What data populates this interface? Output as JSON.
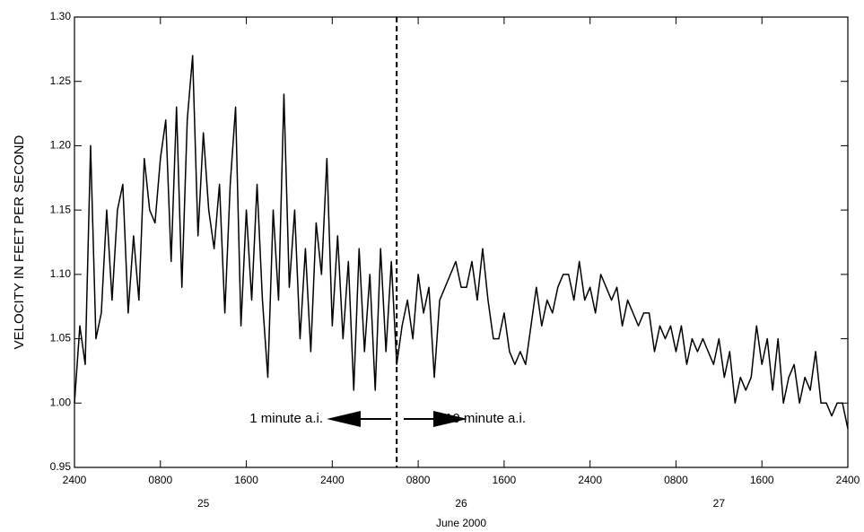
{
  "chart_data": {
    "type": "line",
    "y_label": "VELOCITY IN FEET PER SECOND",
    "x_label": "June 2000",
    "annotations": [
      "1 minute a.i.",
      "10 minute a.i."
    ],
    "divider_x": 30,
    "color": "#000000",
    "xlim": [
      0,
      72
    ],
    "xticks": [
      {
        "value": 0,
        "label": "2400"
      },
      {
        "value": 8,
        "label": "0800"
      },
      {
        "value": 16,
        "label": "1600"
      },
      {
        "value": 24,
        "label": "2400"
      },
      {
        "value": 32,
        "label": "0800"
      },
      {
        "value": 40,
        "label": "1600"
      },
      {
        "value": 48,
        "label": "2400"
      },
      {
        "value": 56,
        "label": "0800"
      },
      {
        "value": 64,
        "label": "1600"
      },
      {
        "value": 72,
        "label": "2400"
      }
    ],
    "day_labels": [
      {
        "value": 12,
        "label": "25"
      },
      {
        "value": 36,
        "label": "26"
      },
      {
        "value": 60,
        "label": "27"
      }
    ],
    "ylim": [
      0.95,
      1.3
    ],
    "yticks": [
      0.95,
      {
        "value": 1.0,
        "label": "1.00"
      },
      1.05,
      {
        "value": 1.1,
        "label": "1.10"
      },
      1.15,
      {
        "value": 1.2,
        "label": "1.20"
      },
      1.25,
      {
        "value": 1.3,
        "label": "1.30"
      }
    ],
    "x": [
      0,
      0.5,
      1,
      1.5,
      2,
      2.5,
      3,
      3.5,
      4,
      4.5,
      5,
      5.5,
      6,
      6.5,
      7,
      7.5,
      8,
      8.5,
      9,
      9.5,
      10,
      10.5,
      11,
      11.5,
      12,
      12.5,
      13,
      13.5,
      14,
      14.5,
      15,
      15.5,
      16,
      16.5,
      17,
      17.5,
      18,
      18.5,
      19,
      19.5,
      20,
      20.5,
      21,
      21.5,
      22,
      22.5,
      23,
      23.5,
      24,
      24.5,
      25,
      25.5,
      26,
      26.5,
      27,
      27.5,
      28,
      28.5,
      29,
      29.5,
      30,
      30.5,
      31,
      31.5,
      32,
      32.5,
      33,
      33.5,
      34,
      34.5,
      35,
      35.5,
      36,
      36.5,
      37,
      37.5,
      38,
      38.5,
      39,
      39.5,
      40,
      40.5,
      41,
      41.5,
      42,
      42.5,
      43,
      43.5,
      44,
      44.5,
      45,
      45.5,
      46,
      46.5,
      47,
      47.5,
      48,
      48.5,
      49,
      49.5,
      50,
      50.5,
      51,
      51.5,
      52,
      52.5,
      53,
      53.5,
      54,
      54.5,
      55,
      55.5,
      56,
      56.5,
      57,
      57.5,
      58,
      58.5,
      59,
      59.5,
      60,
      60.5,
      61,
      61.5,
      62,
      62.5,
      63,
      63.5,
      64,
      64.5,
      65,
      65.5,
      66,
      66.5,
      67,
      67.5,
      68,
      68.5,
      69,
      69.5,
      70,
      70.5,
      71,
      71.5,
      72
    ],
    "values": [
      1.0,
      1.06,
      1.03,
      1.2,
      1.05,
      1.07,
      1.15,
      1.08,
      1.15,
      1.17,
      1.07,
      1.13,
      1.08,
      1.19,
      1.15,
      1.14,
      1.19,
      1.22,
      1.11,
      1.23,
      1.09,
      1.22,
      1.27,
      1.13,
      1.21,
      1.15,
      1.12,
      1.17,
      1.07,
      1.17,
      1.23,
      1.06,
      1.15,
      1.08,
      1.17,
      1.08,
      1.02,
      1.15,
      1.08,
      1.24,
      1.09,
      1.15,
      1.05,
      1.12,
      1.04,
      1.14,
      1.1,
      1.19,
      1.06,
      1.13,
      1.05,
      1.11,
      1.01,
      1.12,
      1.04,
      1.1,
      1.01,
      1.12,
      1.04,
      1.11,
      1.03,
      1.06,
      1.08,
      1.05,
      1.1,
      1.07,
      1.09,
      1.02,
      1.08,
      1.09,
      1.1,
      1.11,
      1.09,
      1.09,
      1.11,
      1.08,
      1.12,
      1.08,
      1.05,
      1.05,
      1.07,
      1.04,
      1.03,
      1.04,
      1.03,
      1.06,
      1.09,
      1.06,
      1.08,
      1.07,
      1.09,
      1.1,
      1.1,
      1.08,
      1.11,
      1.08,
      1.09,
      1.07,
      1.1,
      1.09,
      1.08,
      1.09,
      1.06,
      1.08,
      1.07,
      1.06,
      1.07,
      1.07,
      1.04,
      1.06,
      1.05,
      1.06,
      1.04,
      1.06,
      1.03,
      1.05,
      1.04,
      1.05,
      1.04,
      1.03,
      1.05,
      1.02,
      1.04,
      1.0,
      1.02,
      1.01,
      1.02,
      1.06,
      1.03,
      1.05,
      1.01,
      1.05,
      1.0,
      1.02,
      1.03,
      1.0,
      1.02,
      1.01,
      1.04,
      1.0,
      1.0,
      0.99,
      1.0,
      1.0,
      0.98
    ]
  }
}
